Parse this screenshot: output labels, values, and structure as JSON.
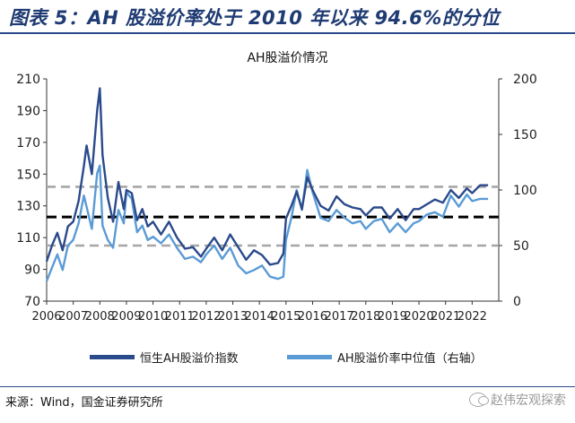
{
  "figure": {
    "title": "图表 5：AH 股溢价率处于 2010 年以来 94.6%的分位",
    "source": "来源：Wind，国金证券研究所",
    "watermark": "赵伟宏观探索"
  },
  "chart_data": {
    "type": "line",
    "title": "AH股溢价情况",
    "x_range": [
      2006,
      2023
    ],
    "x_ticks": [
      "2006",
      "2007",
      "2008",
      "2009",
      "2010",
      "2011",
      "2012",
      "2013",
      "2014",
      "2015",
      "2016",
      "2017",
      "2018",
      "2019",
      "2020",
      "2021",
      "2022"
    ],
    "y_left": {
      "range": [
        70,
        210
      ],
      "ticks": [
        "70",
        "90",
        "110",
        "130",
        "150",
        "170",
        "190",
        "210"
      ]
    },
    "y_right": {
      "range": [
        0,
        200
      ],
      "ticks": [
        "0",
        "50",
        "100",
        "150",
        "200"
      ]
    },
    "reference_lines": [
      {
        "axis": "left",
        "value": 142,
        "style": "dashed",
        "color": "#a6a6a6"
      },
      {
        "axis": "left",
        "value": 123,
        "style": "dashed",
        "color": "#000000"
      },
      {
        "axis": "left",
        "value": 105,
        "style": "dashed",
        "color": "#a6a6a6"
      }
    ],
    "series": [
      {
        "name": "恒生AH股溢价指数",
        "axis": "left",
        "color": "#2b4a8b",
        "x": [
          2006.0,
          2006.2,
          2006.4,
          2006.6,
          2006.8,
          2007.0,
          2007.2,
          2007.4,
          2007.5,
          2007.7,
          2007.9,
          2008.0,
          2008.1,
          2008.3,
          2008.5,
          2008.7,
          2008.9,
          2009.0,
          2009.2,
          2009.4,
          2009.6,
          2009.8,
          2010.0,
          2010.3,
          2010.6,
          2010.9,
          2011.2,
          2011.5,
          2011.8,
          2012.0,
          2012.3,
          2012.6,
          2012.9,
          2013.2,
          2013.5,
          2013.8,
          2014.1,
          2014.4,
          2014.7,
          2014.9,
          2015.0,
          2015.2,
          2015.4,
          2015.6,
          2015.8,
          2016.0,
          2016.3,
          2016.6,
          2016.9,
          2017.2,
          2017.5,
          2017.8,
          2018.0,
          2018.3,
          2018.6,
          2018.9,
          2019.2,
          2019.5,
          2019.8,
          2020.0,
          2020.3,
          2020.6,
          2020.9,
          2021.2,
          2021.5,
          2021.8,
          2022.0,
          2022.3,
          2022.6
        ],
        "values": [
          95,
          105,
          113,
          102,
          117,
          120,
          133,
          155,
          168,
          150,
          190,
          204,
          162,
          135,
          120,
          145,
          128,
          140,
          138,
          121,
          128,
          117,
          120,
          112,
          120,
          110,
          103,
          104,
          98,
          103,
          110,
          102,
          112,
          104,
          96,
          102,
          99,
          93,
          94,
          100,
          122,
          130,
          139,
          128,
          148,
          140,
          130,
          127,
          136,
          131,
          129,
          128,
          124,
          129,
          129,
          122,
          128,
          121,
          128,
          128,
          131,
          134,
          132,
          140,
          135,
          141,
          138,
          143,
          143
        ]
      },
      {
        "name": "AH股溢价率中位值（右轴）",
        "axis": "right",
        "color": "#5b9bd5",
        "x": [
          2006.0,
          2006.2,
          2006.4,
          2006.6,
          2006.8,
          2007.0,
          2007.2,
          2007.4,
          2007.5,
          2007.7,
          2007.9,
          2008.0,
          2008.1,
          2008.3,
          2008.5,
          2008.7,
          2008.9,
          2009.0,
          2009.2,
          2009.4,
          2009.6,
          2009.8,
          2010.0,
          2010.3,
          2010.6,
          2010.9,
          2011.2,
          2011.5,
          2011.8,
          2012.0,
          2012.3,
          2012.6,
          2012.9,
          2013.2,
          2013.5,
          2013.8,
          2014.1,
          2014.4,
          2014.7,
          2014.9,
          2015.0,
          2015.2,
          2015.4,
          2015.6,
          2015.8,
          2016.0,
          2016.3,
          2016.6,
          2016.9,
          2017.2,
          2017.5,
          2017.8,
          2018.0,
          2018.3,
          2018.6,
          2018.9,
          2019.2,
          2019.5,
          2019.8,
          2020.0,
          2020.3,
          2020.6,
          2020.9,
          2021.2,
          2021.5,
          2021.8,
          2022.0,
          2022.3,
          2022.6
        ],
        "values": [
          18,
          30,
          42,
          28,
          50,
          55,
          70,
          95,
          85,
          65,
          115,
          122,
          68,
          55,
          48,
          82,
          70,
          98,
          92,
          62,
          68,
          55,
          58,
          52,
          60,
          48,
          38,
          40,
          35,
          42,
          50,
          38,
          48,
          32,
          25,
          28,
          32,
          22,
          20,
          22,
          55,
          75,
          100,
          82,
          118,
          98,
          75,
          72,
          82,
          75,
          70,
          72,
          65,
          72,
          74,
          62,
          70,
          62,
          70,
          72,
          78,
          80,
          76,
          95,
          85,
          96,
          90,
          92,
          92
        ]
      }
    ]
  }
}
